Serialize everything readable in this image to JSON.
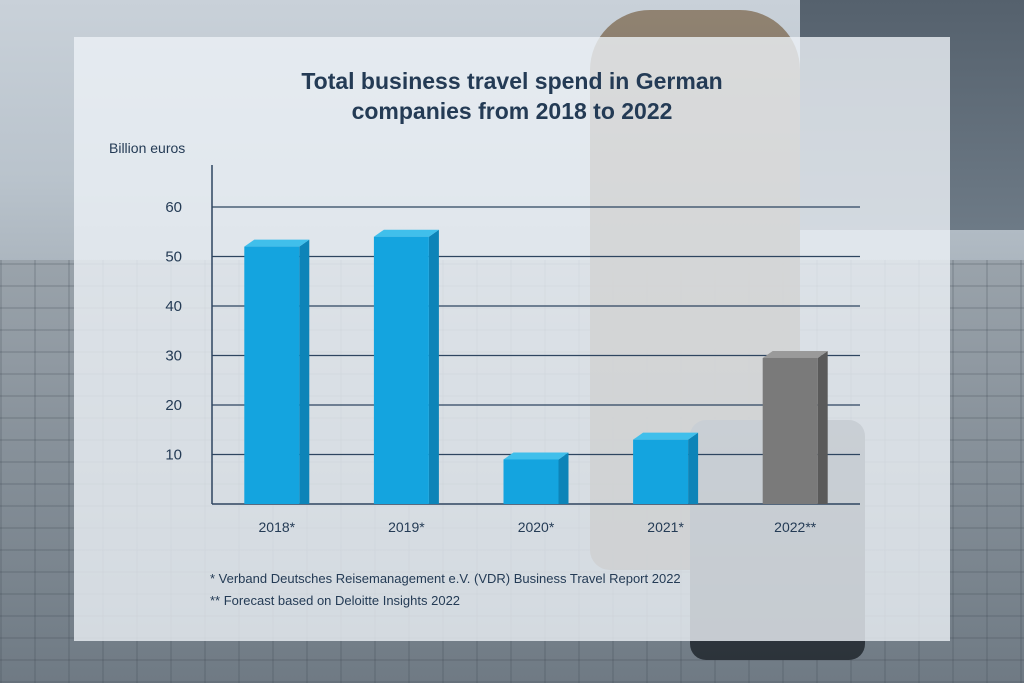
{
  "chart_data": {
    "type": "bar",
    "title_line1": "Total business travel spend in German",
    "title_line2": "companies from 2018 to 2022",
    "ylabel": "Billion euros",
    "categories": [
      "2018*",
      "2019*",
      "2020*",
      "2021*",
      "2022**"
    ],
    "values": [
      52,
      54,
      9,
      13,
      29.5
    ],
    "forecast": [
      false,
      false,
      false,
      false,
      true
    ],
    "yticks": [
      10,
      20,
      30,
      40,
      50,
      60
    ],
    "ylim": [
      0,
      68
    ],
    "grid": true,
    "colors": {
      "actual_front": "#14a4df",
      "actual_side": "#0d84b8",
      "actual_top": "#40bfeb",
      "forecast_front": "#7a7a7a",
      "forecast_side": "#5a5a5a",
      "forecast_top": "#9a9a9a",
      "grid": "#2e4560",
      "text": "#243b55"
    }
  },
  "footnotes": [
    "* Verband Deutsches Reisemanagement e.V. (VDR) Business Travel Report 2022",
    "** Forecast based on Deloitte Insights 2022"
  ]
}
